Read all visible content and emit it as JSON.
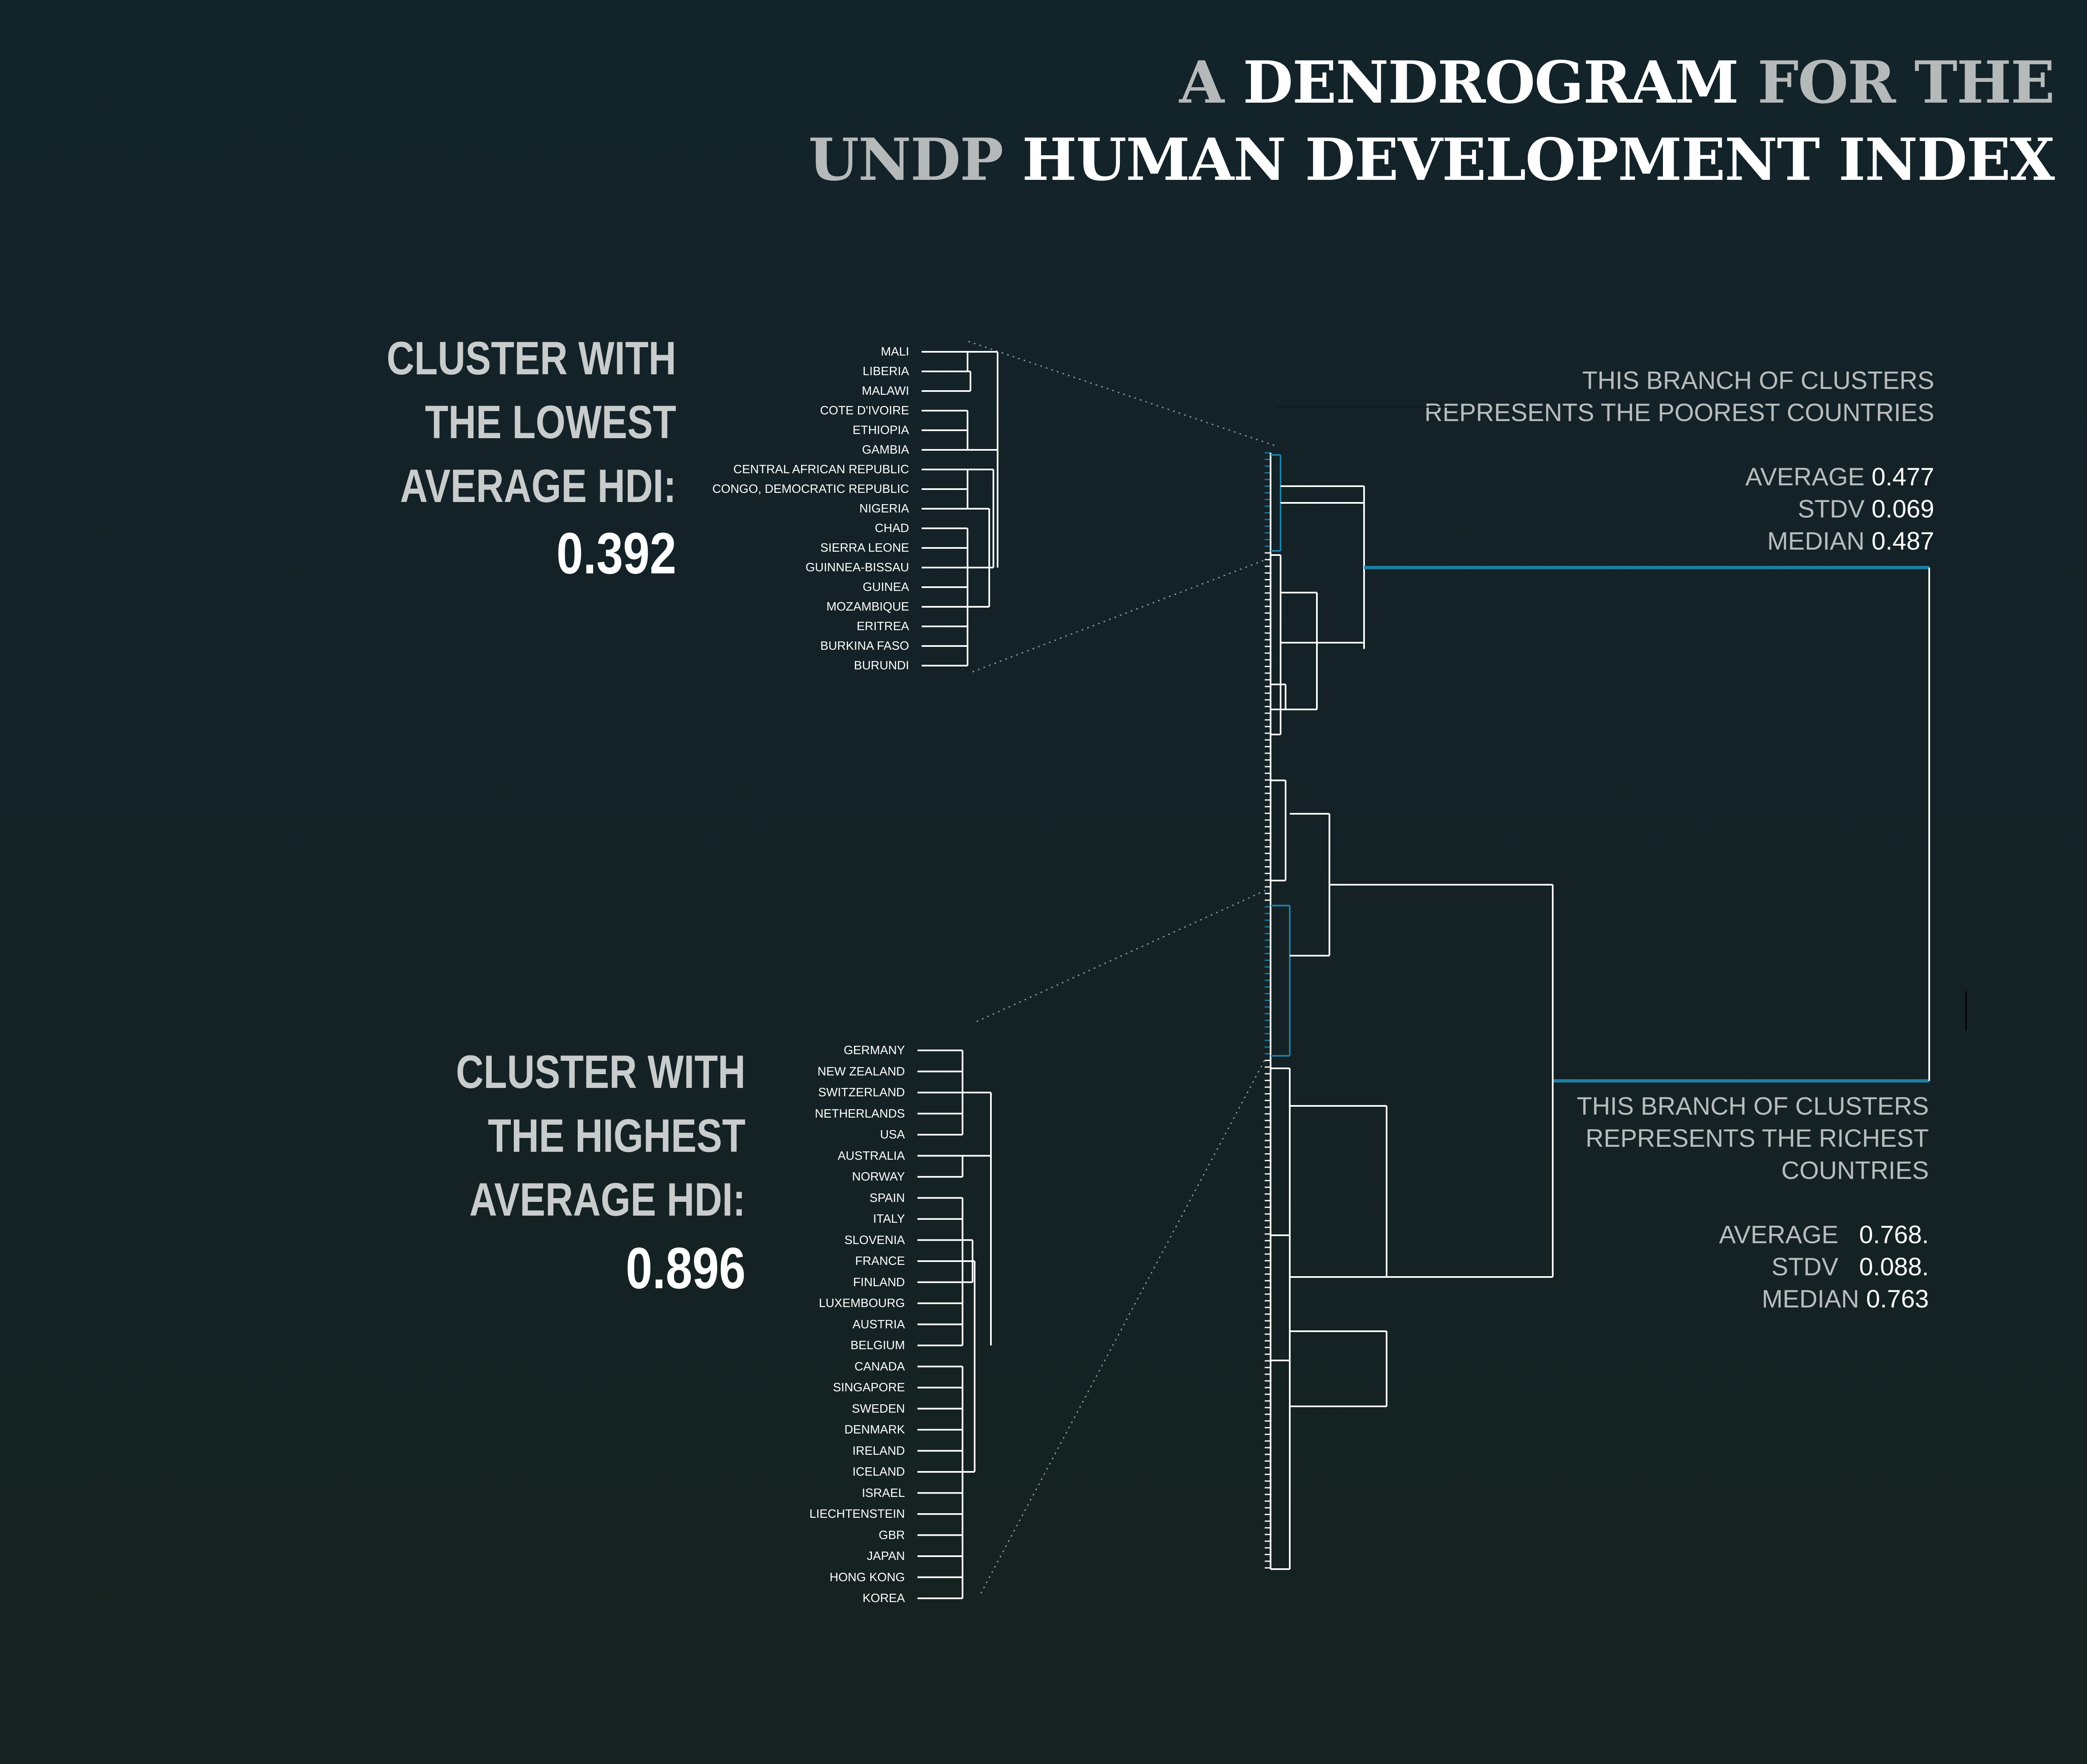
{
  "title": {
    "line1": [
      "A",
      "DENDROGRAM",
      "FOR THE"
    ],
    "line2": [
      "UNDP",
      "HUMAN DEVELOPMENT INDEX"
    ]
  },
  "lowest_cluster": {
    "heading": [
      "CLUSTER WITH",
      "THE LOWEST",
      "AVERAGE HDI:"
    ],
    "value": "0.392",
    "countries": [
      "MALI",
      "LIBERIA",
      "MALAWI",
      "COTE D'IVOIRE",
      "ETHIOPIA",
      "GAMBIA",
      "CENTRAL AFRICAN REPUBLIC",
      "CONGO, DEMOCRATIC REPUBLIC",
      "NIGERIA",
      "CHAD",
      "SIERRA LEONE",
      "GUINNEA-BISSAU",
      "GUINEA",
      "MOZAMBIQUE",
      "ERITREA",
      "BURKINA FASO",
      "BURUNDI"
    ]
  },
  "highest_cluster": {
    "heading": [
      "CLUSTER WITH",
      "THE HIGHEST",
      "AVERAGE HDI:"
    ],
    "value": "0.896",
    "countries": [
      "GERMANY",
      "NEW ZEALAND",
      "SWITZERLAND",
      "NETHERLANDS",
      "USA",
      "AUSTRALIA",
      "NORWAY",
      "SPAIN",
      "ITALY",
      "SLOVENIA",
      "FRANCE",
      "FINLAND",
      "LUXEMBOURG",
      "AUSTRIA",
      "BELGIUM",
      "CANADA",
      "SINGAPORE",
      "SWEDEN",
      "DENMARK",
      "IRELAND",
      "ICELAND",
      "ISRAEL",
      "LIECHTENSTEIN",
      "GBR",
      "JAPAN",
      "HONG KONG",
      "KOREA"
    ]
  },
  "poor_branch": {
    "description": [
      "THIS BRANCH OF CLUSTERS",
      "REPRESENTS THE POOREST COUNTRIES"
    ],
    "stats": [
      {
        "label": "AVERAGE",
        "value": "0.477"
      },
      {
        "label": "STDV",
        "value": "0.069"
      },
      {
        "label": "MEDIAN",
        "value": "0.487"
      }
    ]
  },
  "rich_branch": {
    "description": [
      "THIS BRANCH OF CLUSTERS",
      "REPRESENTS THE RICHEST",
      "COUNTRIES"
    ],
    "stats": [
      {
        "label": "AVERAGE",
        "value": "0.768."
      },
      {
        "label": "STDV",
        "value": "0.088."
      },
      {
        "label": "MEDIAN",
        "value": "0.763"
      }
    ]
  },
  "colors": {
    "highlight": "#1c7fa3",
    "line": "#ffffff",
    "connector": "#8a9a9a"
  }
}
